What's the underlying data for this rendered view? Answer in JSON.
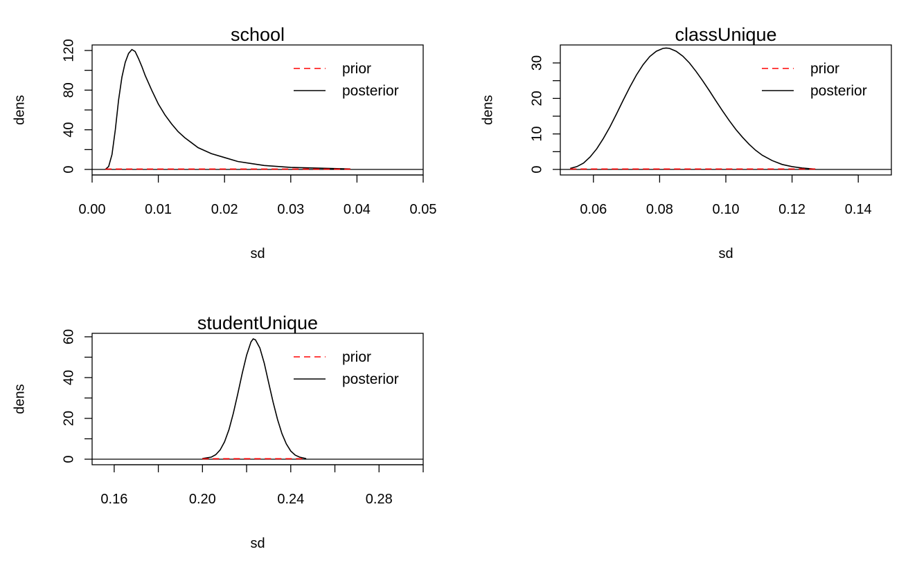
{
  "colors": {
    "prior": "#ff0000",
    "posterior": "#000000",
    "axis": "#000000"
  },
  "chart_data": [
    {
      "type": "line",
      "title": "school",
      "xlabel": "sd",
      "ylabel": "dens",
      "xlim": [
        0,
        0.05
      ],
      "ylim": [
        0,
        125
      ],
      "xticks": [
        "0.00",
        "0.01",
        "0.02",
        "0.03",
        "0.04",
        "0.05"
      ],
      "yticks": [
        "0",
        "40",
        "80",
        "120"
      ],
      "yminor": [
        0,
        20,
        40,
        60,
        80,
        100,
        120
      ],
      "legend": {
        "position": "top-right",
        "entries": [
          "prior",
          "posterior"
        ]
      },
      "series": [
        {
          "name": "prior",
          "style": "dashed",
          "x": [
            0.002,
            0.039
          ],
          "y": [
            0.3,
            0.3
          ]
        },
        {
          "name": "posterior",
          "style": "solid",
          "x": [
            0.002,
            0.0025,
            0.003,
            0.0035,
            0.004,
            0.0045,
            0.005,
            0.0055,
            0.006,
            0.0065,
            0.007,
            0.0075,
            0.008,
            0.009,
            0.01,
            0.011,
            0.012,
            0.013,
            0.014,
            0.015,
            0.016,
            0.018,
            0.02,
            0.022,
            0.024,
            0.026,
            0.028,
            0.03,
            0.033,
            0.036,
            0.039
          ],
          "y": [
            0,
            3,
            15,
            40,
            70,
            93,
            108,
            117,
            121,
            119,
            112,
            104,
            95,
            80,
            66,
            55,
            46,
            38,
            32,
            27,
            22,
            16,
            12,
            8,
            6,
            4,
            3,
            2,
            1.5,
            1,
            0.5
          ]
        }
      ]
    },
    {
      "type": "line",
      "title": "classUnique",
      "xlabel": "sd",
      "ylabel": "dens",
      "xlim": [
        0.05,
        0.15
      ],
      "ylim": [
        0,
        35
      ],
      "xticks": [
        "0.06",
        "0.08",
        "0.10",
        "0.12",
        "0.14"
      ],
      "yticks": [
        "0",
        "10",
        "20",
        "30"
      ],
      "yminor": [
        0,
        5,
        10,
        15,
        20,
        25,
        30
      ],
      "legend": {
        "position": "top-right",
        "entries": [
          "prior",
          "posterior"
        ]
      },
      "series": [
        {
          "name": "prior",
          "style": "dashed",
          "x": [
            0.053,
            0.127
          ],
          "y": [
            0.1,
            0.1
          ]
        },
        {
          "name": "posterior",
          "style": "solid",
          "x": [
            0.053,
            0.055,
            0.057,
            0.059,
            0.061,
            0.063,
            0.065,
            0.067,
            0.069,
            0.071,
            0.073,
            0.075,
            0.077,
            0.079,
            0.081,
            0.082,
            0.083,
            0.085,
            0.087,
            0.089,
            0.091,
            0.093,
            0.095,
            0.097,
            0.099,
            0.101,
            0.103,
            0.105,
            0.107,
            0.109,
            0.111,
            0.114,
            0.117,
            0.12,
            0.123,
            0.127
          ],
          "y": [
            0.3,
            0.8,
            1.8,
            3.5,
            5.8,
            8.7,
            12,
            15.7,
            19.5,
            23.2,
            26.6,
            29.5,
            31.8,
            33.3,
            34.1,
            34.2,
            34.1,
            33.3,
            31.9,
            30,
            27.6,
            25,
            22.2,
            19.3,
            16.5,
            13.8,
            11.3,
            9.1,
            7.1,
            5.4,
            4,
            2.5,
            1.4,
            0.8,
            0.4,
            0.1
          ]
        }
      ]
    },
    {
      "type": "line",
      "title": "studentUnique",
      "xlabel": "sd",
      "ylabel": "dens",
      "xlim": [
        0.15,
        0.3
      ],
      "ylim": [
        0,
        62
      ],
      "xticks": [
        "0.16",
        "0.20",
        "0.24",
        "0.28"
      ],
      "xminor": [
        0.16,
        0.18,
        0.2,
        0.22,
        0.24,
        0.26,
        0.28,
        0.3
      ],
      "yticks": [
        "0",
        "20",
        "40",
        "60"
      ],
      "yminor": [
        0,
        10,
        20,
        30,
        40,
        50,
        60
      ],
      "legend": {
        "position": "top-right",
        "entries": [
          "prior",
          "posterior"
        ]
      },
      "series": [
        {
          "name": "prior",
          "style": "dashed",
          "x": [
            0.2,
            0.247
          ],
          "y": [
            0.2,
            0.2
          ]
        },
        {
          "name": "posterior",
          "style": "solid",
          "x": [
            0.2,
            0.204,
            0.206,
            0.208,
            0.21,
            0.212,
            0.214,
            0.216,
            0.218,
            0.22,
            0.222,
            0.223,
            0.224,
            0.226,
            0.228,
            0.23,
            0.232,
            0.234,
            0.236,
            0.238,
            0.24,
            0.242,
            0.244,
            0.247
          ],
          "y": [
            0.3,
            1,
            2.2,
            4.5,
            8.5,
            14.5,
            22.5,
            32,
            42,
            51,
            57.5,
            59,
            58.5,
            54.5,
            47,
            37.5,
            28,
            19.5,
            12.5,
            7.5,
            4,
            2,
            1,
            0.3
          ]
        }
      ]
    }
  ]
}
